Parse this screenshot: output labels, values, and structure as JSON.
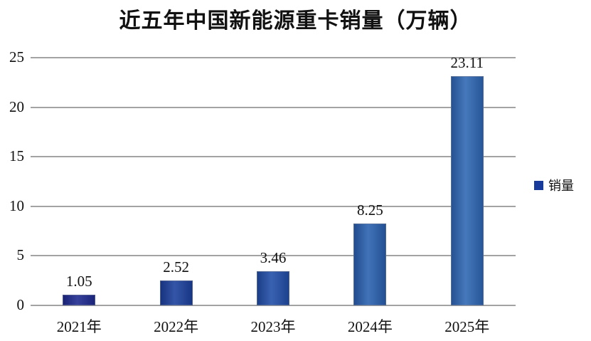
{
  "chart_data": {
    "type": "bar",
    "title": "近五年中国新能源重卡销量（万辆）",
    "categories": [
      "2021年",
      "2022年",
      "2023年",
      "2024年",
      "2025年"
    ],
    "series": [
      {
        "name": "销量",
        "values": [
          1.05,
          2.52,
          3.46,
          8.25,
          23.11
        ],
        "colors": [
          "#202c90",
          "#1d429d",
          "#2350a8",
          "#2b62b0",
          "#3069b4"
        ]
      }
    ],
    "data_labels": [
      "1.05",
      "2.52",
      "3.46",
      "8.25",
      "23.11"
    ],
    "xlabel": "",
    "ylabel": "",
    "ylim": [
      0,
      25
    ],
    "yticks": [
      0,
      5,
      10,
      15,
      20,
      25
    ],
    "grid": true,
    "legend": {
      "position": "right",
      "label": "销量",
      "swatch_color": "#173a9b"
    },
    "colors": {
      "background": "#ffffff",
      "gridline": "#a3a3a3",
      "text": "#111111"
    }
  }
}
